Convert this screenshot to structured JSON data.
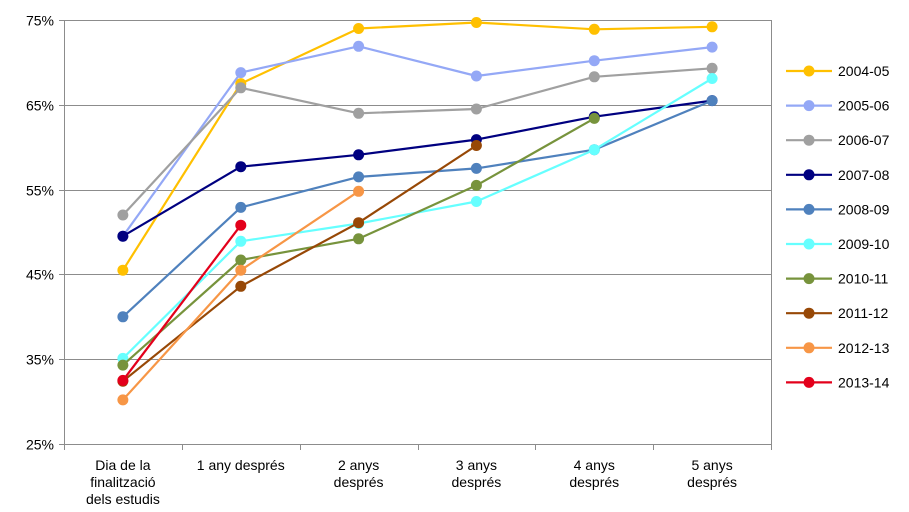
{
  "chart_data": {
    "type": "line",
    "categories": [
      [
        "Dia de la",
        "finalització",
        "dels estudis"
      ],
      [
        "1 any després"
      ],
      [
        "2 anys",
        "després"
      ],
      [
        "3 anys",
        "després"
      ],
      [
        "4 anys",
        "després"
      ],
      [
        "5 anys",
        "després"
      ]
    ],
    "yticks": [
      "25%",
      "35%",
      "45%",
      "55%",
      "65%",
      "75%"
    ],
    "ylim": [
      25,
      75
    ],
    "grid": true,
    "legend_position": "right",
    "title": "",
    "xlabel": "",
    "ylabel": "",
    "series": [
      {
        "name": "2004-05",
        "color": "#FFC000",
        "values": [
          45.5,
          67.5,
          74.0,
          74.7,
          73.9,
          74.2
        ]
      },
      {
        "name": "2005-06",
        "color": "#94A8F6",
        "values": [
          49.5,
          68.8,
          71.9,
          68.4,
          70.2,
          71.8
        ]
      },
      {
        "name": "2006-07",
        "color": "#A0A0A0",
        "values": [
          52.0,
          67.0,
          64.0,
          64.5,
          68.3,
          69.3
        ]
      },
      {
        "name": "2007-08",
        "color": "#000080",
        "values": [
          49.5,
          57.7,
          59.1,
          60.9,
          63.6,
          65.5
        ]
      },
      {
        "name": "2008-09",
        "color": "#4F81BD",
        "values": [
          40.0,
          52.9,
          56.5,
          57.5,
          59.7,
          65.5
        ]
      },
      {
        "name": "2009-10",
        "color": "#66FFFF",
        "values": [
          35.1,
          48.9,
          51.0,
          53.6,
          59.7,
          68.1
        ]
      },
      {
        "name": "2010-11",
        "color": "#77933C",
        "values": [
          34.3,
          46.7,
          49.2,
          55.5,
          63.4,
          null
        ]
      },
      {
        "name": "2011-12",
        "color": "#974806",
        "values": [
          32.4,
          43.6,
          51.1,
          60.2,
          null,
          null
        ]
      },
      {
        "name": "2012-13",
        "color": "#F79646",
        "values": [
          30.2,
          45.5,
          54.8,
          null,
          null,
          null
        ]
      },
      {
        "name": "2013-14",
        "color": "#E3001B",
        "values": [
          32.5,
          50.8,
          null,
          null,
          null,
          null
        ]
      }
    ]
  }
}
